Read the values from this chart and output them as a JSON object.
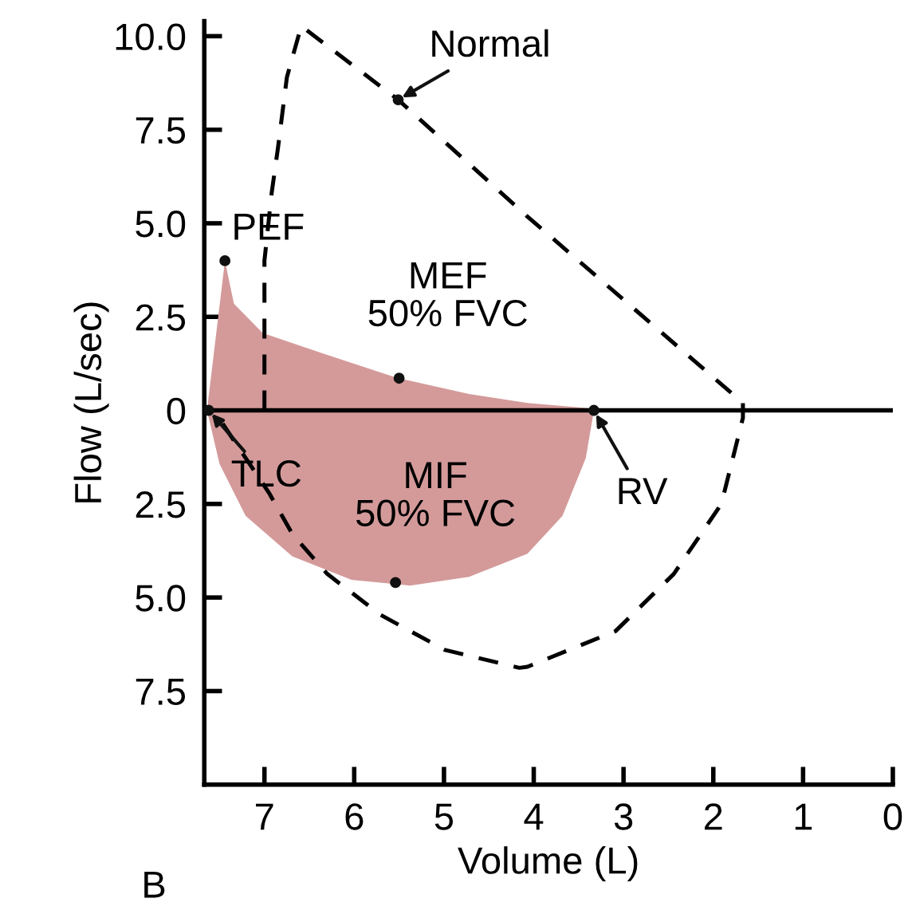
{
  "chart_data": {
    "type": "line",
    "xlabel": "Volume (L)",
    "ylabel": "Flow (L/sec)",
    "xlim": [
      7.67,
      0
    ],
    "xticks": [
      7,
      6,
      5,
      4,
      3,
      2,
      1,
      0
    ],
    "ylim": [
      -10,
      10.4
    ],
    "yticks": [
      {
        "value": 10,
        "label": "10.0"
      },
      7.5,
      {
        "value": 5,
        "label": "5.0"
      },
      2.5,
      0,
      {
        "value": -2.5,
        "label": "2.5"
      },
      {
        "value": -5,
        "label": "5.0"
      },
      {
        "value": -7.5,
        "label": "7.5"
      }
    ],
    "grid": false,
    "legend": false,
    "series": [
      {
        "type": "area",
        "color": "#d49a9a",
        "x": [
          7.64,
          7.44,
          7.34,
          7.02,
          6.36,
          5.51,
          4.72,
          4.07,
          3.35,
          3.33,
          3.42,
          3.68,
          4.07,
          4.72,
          5.38,
          6.03,
          6.69,
          7.21,
          7.5,
          7.64
        ],
        "values": [
          0,
          4.0,
          2.85,
          2.07,
          1.53,
          0.86,
          0.44,
          0.2,
          0.05,
          0,
          -1.27,
          -2.82,
          -3.83,
          -4.45,
          -4.68,
          -4.53,
          -3.9,
          -2.82,
          -1.43,
          0
        ]
      },
      {
        "color": "#000000",
        "line_style": "dashed",
        "x": [
          7.0,
          7.0,
          6.92,
          6.85,
          6.75,
          6.59,
          5.51,
          4.08,
          1.67,
          1.67,
          1.91,
          2.44,
          3.09,
          4.07,
          4.16,
          4.99,
          5.71,
          6.3,
          6.69,
          6.95,
          7.21,
          7.47,
          7.64
        ],
        "values": [
          0,
          4.0,
          5.8,
          7.0,
          8.9,
          10.27,
          8.3,
          5.2,
          0.2,
          -0.2,
          -2.5,
          -4.37,
          -5.9,
          -6.85,
          -6.88,
          -6.4,
          -5.46,
          -4.37,
          -3.3,
          -2.2,
          -1.27,
          -0.34,
          0
        ]
      }
    ],
    "ref_lines": [
      {
        "axis": "y",
        "value": 0,
        "color": "#000000",
        "line_style": "solid"
      }
    ],
    "annotations": [
      {
        "text": "Normal",
        "x": 5.51,
        "y": 8.3
      },
      {
        "text": "PEF",
        "x": 7.44,
        "y": 4.0
      },
      {
        "text": "MEF\n50% FVC",
        "x": 5.5,
        "y": 0.86
      },
      {
        "text": "TLC",
        "x": 7.62,
        "y": 0
      },
      {
        "text": "MIF\n50% FVC",
        "x": 5.54,
        "y": -4.6
      },
      {
        "text": "RV",
        "x": 3.33,
        "y": 0
      },
      "B"
    ]
  }
}
